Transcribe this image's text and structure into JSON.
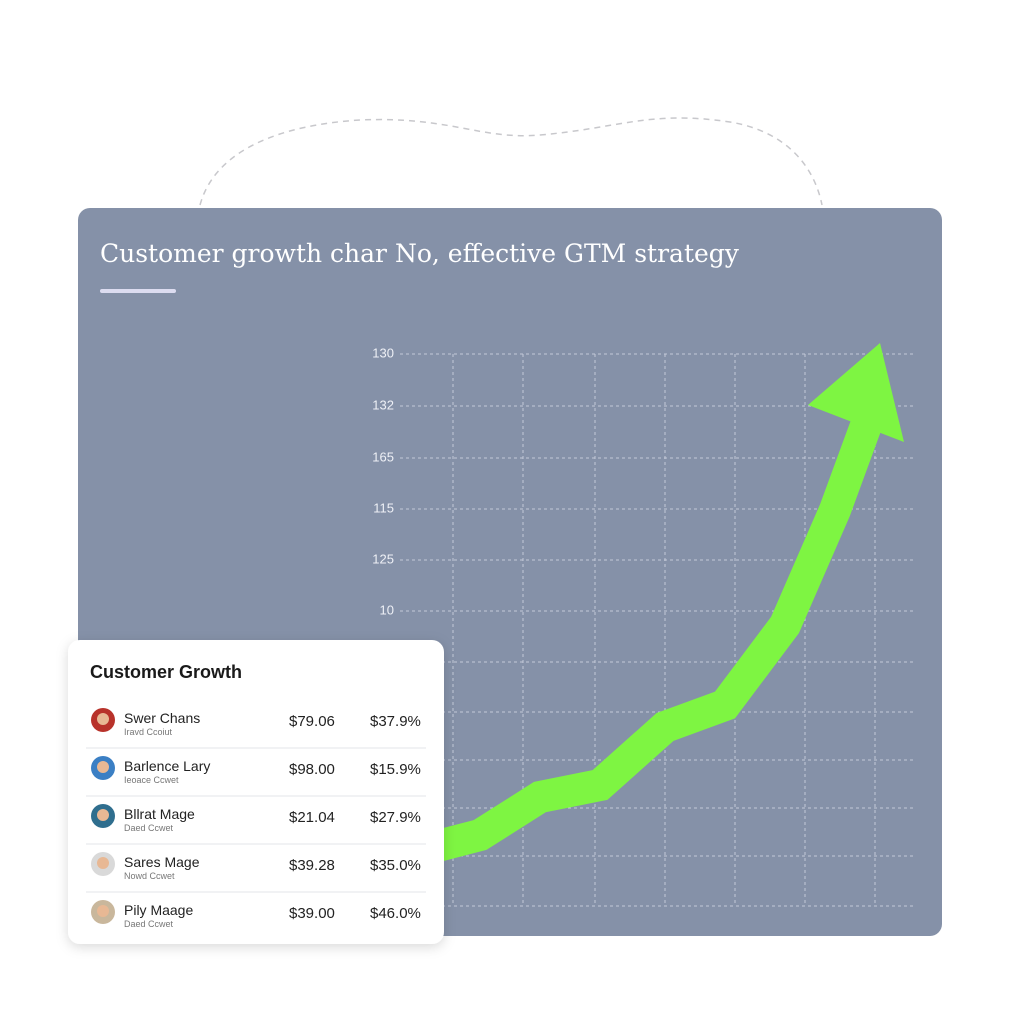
{
  "card": {
    "title": "Customer growth char No, effective GTM strategy",
    "axis_labels": [
      "130",
      "132",
      "165",
      "115",
      "125",
      "10"
    ]
  },
  "table": {
    "title": "Customer Growth",
    "rows": [
      {
        "name": "Swer Chans",
        "sub": "Iravd Ccoiut",
        "amount": "$79.06",
        "percent": "$37.9%"
      },
      {
        "name": "Barlence Lary",
        "sub": "Ieoace Ccwet",
        "amount": "$98.00",
        "percent": "$15.9%"
      },
      {
        "name": "Bllrat Mage",
        "sub": "Daed Ccwet",
        "amount": "$21.04",
        "percent": "$27.9%"
      },
      {
        "name": "Sares Mage",
        "sub": "Nowd Ccwet",
        "amount": "$39.28",
        "percent": "$35.0%"
      },
      {
        "name": "Pily Maage",
        "sub": "Daed Ccwet",
        "amount": "$39.00",
        "percent": "$46.0%"
      }
    ]
  }
}
